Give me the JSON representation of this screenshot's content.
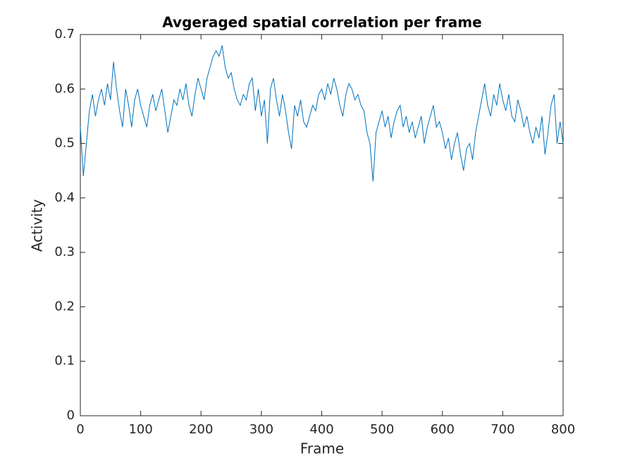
{
  "chart_data": {
    "type": "line",
    "title": "Avgeraged spatial correlation per frame",
    "xlabel": "Frame",
    "ylabel": "Activity",
    "color": "#0072bd",
    "x": [
      0,
      5,
      10,
      15,
      20,
      25,
      30,
      35,
      40,
      45,
      50,
      55,
      60,
      65,
      70,
      75,
      80,
      85,
      90,
      95,
      100,
      105,
      110,
      115,
      120,
      125,
      130,
      135,
      140,
      145,
      150,
      155,
      160,
      165,
      170,
      175,
      180,
      185,
      190,
      195,
      200,
      205,
      210,
      215,
      220,
      225,
      230,
      235,
      240,
      245,
      250,
      255,
      260,
      265,
      270,
      275,
      280,
      285,
      290,
      295,
      300,
      305,
      310,
      315,
      320,
      325,
      330,
      335,
      340,
      345,
      350,
      355,
      360,
      365,
      370,
      375,
      380,
      385,
      390,
      395,
      400,
      405,
      410,
      415,
      420,
      425,
      430,
      435,
      440,
      445,
      450,
      455,
      460,
      465,
      470,
      475,
      480,
      485,
      490,
      495,
      500,
      505,
      510,
      515,
      520,
      525,
      530,
      535,
      540,
      545,
      550,
      555,
      560,
      565,
      570,
      575,
      580,
      585,
      590,
      595,
      600,
      605,
      610,
      615,
      620,
      625,
      630,
      635,
      640,
      645,
      650,
      655,
      660,
      665,
      670,
      675,
      680,
      685,
      690,
      695,
      700,
      705,
      710,
      715,
      720,
      725,
      730,
      735,
      740,
      745,
      750,
      755,
      760,
      765,
      770,
      775,
      780,
      785,
      790,
      795,
      800
    ],
    "values": [
      0.53,
      0.44,
      0.5,
      0.56,
      0.59,
      0.55,
      0.58,
      0.6,
      0.57,
      0.61,
      0.58,
      0.65,
      0.6,
      0.56,
      0.53,
      0.6,
      0.57,
      0.53,
      0.58,
      0.6,
      0.57,
      0.55,
      0.53,
      0.57,
      0.59,
      0.56,
      0.58,
      0.6,
      0.56,
      0.52,
      0.55,
      0.58,
      0.57,
      0.6,
      0.58,
      0.61,
      0.57,
      0.55,
      0.59,
      0.62,
      0.6,
      0.58,
      0.62,
      0.64,
      0.66,
      0.67,
      0.66,
      0.68,
      0.64,
      0.62,
      0.63,
      0.6,
      0.58,
      0.57,
      0.59,
      0.58,
      0.61,
      0.62,
      0.56,
      0.6,
      0.55,
      0.58,
      0.5,
      0.6,
      0.62,
      0.58,
      0.55,
      0.59,
      0.56,
      0.52,
      0.49,
      0.57,
      0.55,
      0.58,
      0.54,
      0.53,
      0.55,
      0.57,
      0.56,
      0.59,
      0.6,
      0.58,
      0.61,
      0.59,
      0.62,
      0.6,
      0.57,
      0.55,
      0.59,
      0.61,
      0.6,
      0.58,
      0.59,
      0.57,
      0.56,
      0.52,
      0.5,
      0.43,
      0.52,
      0.54,
      0.56,
      0.53,
      0.55,
      0.51,
      0.54,
      0.56,
      0.57,
      0.53,
      0.55,
      0.52,
      0.54,
      0.51,
      0.53,
      0.55,
      0.5,
      0.53,
      0.55,
      0.57,
      0.53,
      0.54,
      0.52,
      0.49,
      0.51,
      0.47,
      0.5,
      0.52,
      0.48,
      0.45,
      0.49,
      0.5,
      0.47,
      0.52,
      0.55,
      0.58,
      0.61,
      0.57,
      0.55,
      0.59,
      0.57,
      0.61,
      0.58,
      0.56,
      0.59,
      0.55,
      0.54,
      0.58,
      0.56,
      0.53,
      0.55,
      0.52,
      0.5,
      0.53,
      0.51,
      0.55,
      0.48,
      0.52,
      0.57,
      0.59,
      0.5,
      0.54,
      0.5
    ],
    "xlim": [
      0,
      800
    ],
    "xticks": [
      0,
      100,
      200,
      300,
      400,
      500,
      600,
      700,
      800
    ],
    "ylim": [
      0,
      0.7
    ],
    "yticks": [
      0,
      0.1,
      0.2,
      0.3,
      0.4,
      0.5,
      0.6,
      0.7
    ]
  }
}
